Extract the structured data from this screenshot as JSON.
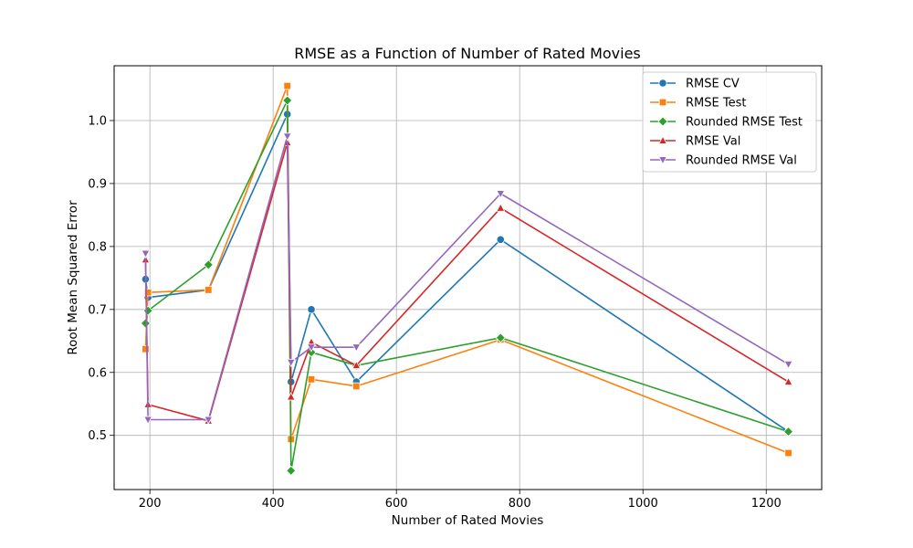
{
  "chart_data": {
    "type": "line",
    "title": "RMSE as a Function of Number of Rated Movies",
    "xlabel": "Number of Rated Movies",
    "ylabel": "Root Mean Squared Error",
    "xlim": [
      142,
      1290
    ],
    "ylim": [
      0.414,
      1.087
    ],
    "xticks": [
      200,
      400,
      600,
      800,
      1000,
      1200
    ],
    "yticks": [
      0.5,
      0.6,
      0.7,
      0.8,
      0.9,
      1.0
    ],
    "xtick_labels": [
      "200",
      "400",
      "600",
      "800",
      "1000",
      "1200"
    ],
    "ytick_labels": [
      "0.5",
      "0.6",
      "0.7",
      "0.8",
      "0.9",
      "1.0"
    ],
    "grid": true,
    "legend_position": "top-right",
    "x": [
      193,
      197,
      295,
      423,
      429,
      462,
      535,
      769,
      1236
    ],
    "series": [
      {
        "name": "RMSE CV",
        "color": "#1f77b4",
        "marker": "circle",
        "values": [
          0.748,
          0.719,
          0.731,
          1.01,
          0.585,
          0.7,
          0.585,
          0.811,
          0.506
        ]
      },
      {
        "name": "RMSE Test",
        "color": "#ff7f0e",
        "marker": "square",
        "values": [
          0.637,
          0.727,
          0.731,
          1.055,
          0.494,
          0.589,
          0.578,
          0.652,
          0.472
        ]
      },
      {
        "name": "Rounded RMSE Test",
        "color": "#2ca02c",
        "marker": "diamond",
        "values": [
          0.678,
          0.698,
          0.771,
          1.032,
          0.444,
          0.632,
          0.611,
          0.655,
          0.506
        ]
      },
      {
        "name": "RMSE Val",
        "color": "#d62728",
        "marker": "triangle-up",
        "values": [
          0.779,
          0.549,
          0.523,
          0.965,
          0.561,
          0.648,
          0.611,
          0.861,
          0.585
        ]
      },
      {
        "name": "Rounded RMSE Val",
        "color": "#9467bd",
        "marker": "triangle-down",
        "values": [
          0.789,
          0.525,
          0.525,
          0.975,
          0.616,
          0.64,
          0.64,
          0.884,
          0.613
        ]
      }
    ]
  }
}
